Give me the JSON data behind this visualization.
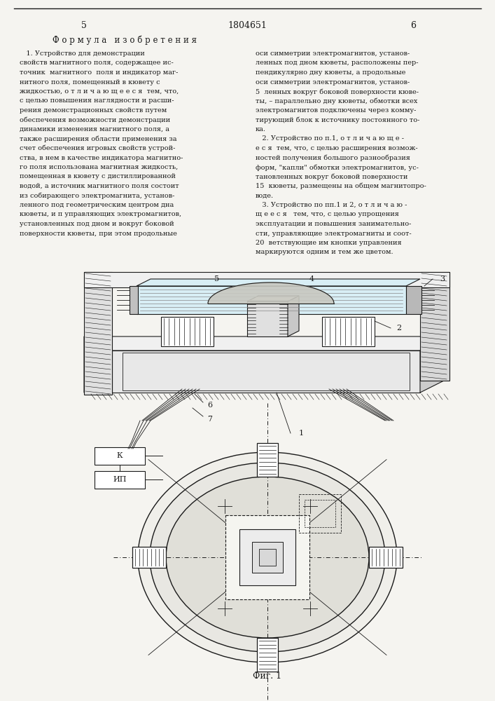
{
  "page_width": 7.07,
  "page_height": 10.0,
  "bg_color": "#f5f4f0",
  "text_color": "#1a1a1a",
  "page_num_left": "5",
  "page_num_center": "1804651",
  "page_num_right": "6",
  "header": "Ф о р м у л а   и з о б р е т е н и я",
  "fig_caption": "Фиг. 1",
  "left_col": [
    "   1. Устройство для демонстрации",
    "свойств магнитного поля, содержащее ис-",
    "точник  магнитного  поля и индикатор маг-",
    "нитного поля, помещенный в кювету с",
    "жидкостью, о т л и ч а ю щ е е с я  тем, что,",
    "с целью повышения наглядности и расши-",
    "рения демонстрационных свойств путем",
    "обеспечения возможности демонстрации",
    "динамики изменения магнитного поля, а",
    "также расширения области применения за",
    "счет обеспечения игровых свойств устрой-",
    "ства, в нем в качестве индикатора магнитно-",
    "го поля использована магнитная жидкость,",
    "помещенная в кювету с дистиллированной",
    "водой, а источник магнитного поля состоит",
    "из собирающего электромагнита, установ-",
    "ленного под геометрическим центром дна",
    "кюветы, и п управляющих электромагнитов,",
    "установленных под дном и вокруг боковой",
    "поверхности кюветы, при этом продольные"
  ],
  "right_col": [
    "оси симметрии электромагнитов, установ-",
    "ленных под дном кюветы, расположены пер-",
    "пендикулярно дну кюветы, а продольные",
    "оси симметрии электромагнитов, установ-",
    "5  ленных вокруг боковой поверхности кюве-",
    "ты, – параллельно дну кюветы, обмотки всех",
    "электромагнитов подключены через комму-",
    "тирующий блок к источнику постоянного то-",
    "ка.",
    "   2. Устройство по п.1, о т л и ч а ю щ е -",
    "е с я  тем, что, с целью расширения возмож-",
    "ностей получения большого разнообразия",
    "форм, \"капли\" обмотки электромагнитов, ус-",
    "тановленных вокруг боковой поверхности",
    "15  кюветы, размещены на общем магнитопро-",
    "воде.",
    "   3. Устройство по пп.1 и 2, о т л и ч а ю -",
    "щ е е с я   тем, что, с целью упрощения",
    "эксплуатации и повышения занимательно-",
    "сти, управляющие электромагниты и соот-",
    "20  ветствующие им кнопки управления",
    "маркируются одним и тем же цветом."
  ]
}
